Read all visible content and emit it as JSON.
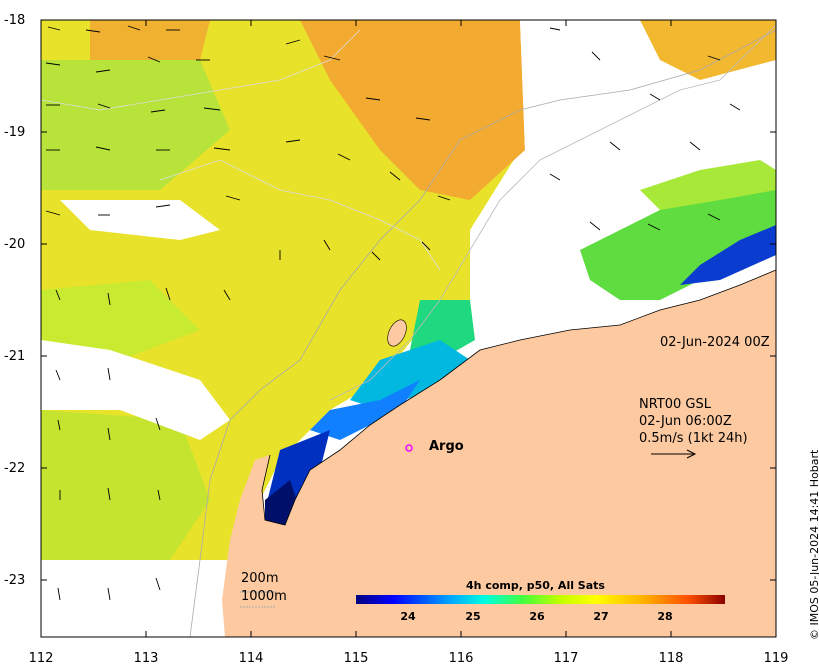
{
  "axes": {
    "x_ticks": [
      "112",
      "113",
      "114",
      "115",
      "116",
      "117",
      "118",
      "119"
    ],
    "y_ticks": [
      "-18",
      "-19",
      "-20",
      "-21",
      "-22",
      "-23"
    ]
  },
  "labels": {
    "date": "02-Jun-2024 00Z",
    "product_line1": "NRT00 GSL",
    "product_line2": "02-Jun 06:00Z",
    "product_line3": "0.5m/s (1kt 24h)",
    "argo": "Argo",
    "contour_200": "200m",
    "contour_1000": "1000m",
    "credit": "© IMOS 05-Jun-2024 14:41 Hobart"
  },
  "colorbar": {
    "title": "4h comp, p50, All Sats",
    "ticks": [
      "24",
      "25",
      "26",
      "27",
      "28"
    ],
    "colors": [
      "#00007f",
      "#0000ff",
      "#0080ff",
      "#00e0ff",
      "#40ff80",
      "#c0ff00",
      "#ffff00",
      "#ffc000",
      "#ff7000",
      "#e01000",
      "#800000"
    ]
  },
  "colors": {
    "land": "#fcc9a0",
    "argo_marker": "#ff00ff"
  }
}
